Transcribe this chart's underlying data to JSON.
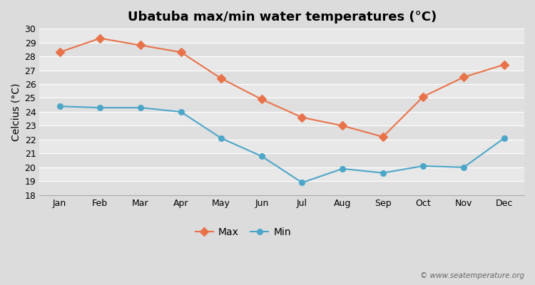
{
  "title": "Ubatuba max/min water temperatures (°C)",
  "ylabel": "Celcius (°C)",
  "months": [
    "Jan",
    "Feb",
    "Mar",
    "Apr",
    "May",
    "Jun",
    "Jul",
    "Aug",
    "Sep",
    "Oct",
    "Nov",
    "Dec"
  ],
  "max_temps": [
    28.3,
    29.3,
    28.8,
    28.3,
    26.4,
    24.9,
    23.6,
    23.0,
    22.2,
    25.1,
    26.5,
    27.4
  ],
  "min_temps": [
    24.4,
    24.3,
    24.3,
    24.0,
    22.1,
    20.8,
    18.9,
    19.9,
    19.6,
    20.1,
    20.0,
    22.1
  ],
  "max_color": "#e8734a",
  "min_color": "#4da6c8",
  "figure_bg_color": "#dcdcdc",
  "plot_bg_color": "#e8e8e8",
  "grid_color": "#ffffff",
  "ylim": [
    18,
    30
  ],
  "yticks": [
    18,
    19,
    20,
    21,
    22,
    23,
    24,
    25,
    26,
    27,
    28,
    29,
    30
  ],
  "watermark": "© www.seatemperature.org",
  "title_fontsize": 13,
  "axis_label_fontsize": 10,
  "tick_fontsize": 9,
  "legend_fontsize": 10
}
